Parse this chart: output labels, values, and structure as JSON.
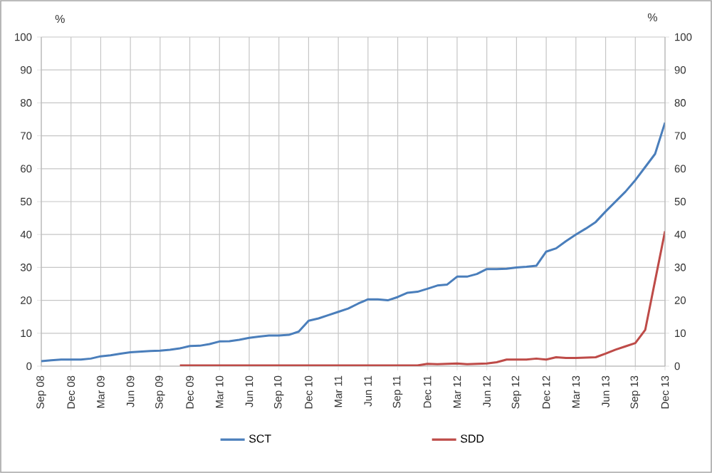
{
  "chart_data": {
    "type": "line",
    "categories": [
      "Sep 08",
      null,
      null,
      "Dec 08",
      null,
      null,
      "Mar 09",
      null,
      null,
      "Jun 09",
      null,
      null,
      "Sep 09",
      null,
      null,
      "Dec 09",
      null,
      null,
      "Mar 10",
      null,
      null,
      "Jun 10",
      null,
      null,
      "Sep 10",
      null,
      null,
      "Dec 10",
      null,
      null,
      "Mar 11",
      null,
      null,
      "Jun 11",
      null,
      null,
      "Sep 11",
      null,
      null,
      "Dec 11",
      null,
      null,
      "Mar 12",
      null,
      null,
      "Jun 12",
      null,
      null,
      "Sep 12",
      null,
      null,
      "Dec 12",
      null,
      null,
      "Mar 13",
      null,
      null,
      "Jun 13",
      null,
      null,
      "Sep 13",
      null,
      null,
      "Dec 13"
    ],
    "series": [
      {
        "name": "SCT",
        "color": "#4a7ebb",
        "values": [
          1.5,
          1.8,
          2,
          2,
          2,
          2.3,
          3,
          3.3,
          3.8,
          4.2,
          4.4,
          4.6,
          4.7,
          5,
          5.4,
          6.1,
          6.2,
          6.7,
          7.5,
          7.6,
          8,
          8.6,
          9,
          9.3,
          9.3,
          9.5,
          10.5,
          13.8,
          14.5,
          15.5,
          16.5,
          17.5,
          19,
          20.3,
          20.3,
          20,
          21,
          22.3,
          22.6,
          23.5,
          24.5,
          24.8,
          27.2,
          27.2,
          28,
          29.5,
          29.5,
          29.6,
          30,
          30.2,
          30.5,
          34.8,
          35.8,
          38,
          40,
          41.8,
          43.8,
          47,
          50,
          53,
          56.5,
          60.5,
          64.5,
          74
        ]
      },
      {
        "name": "SDD",
        "color": "#be4b48",
        "values": [
          null,
          null,
          null,
          null,
          null,
          null,
          null,
          null,
          null,
          null,
          null,
          null,
          null,
          null,
          0.2,
          0.2,
          0.2,
          0.2,
          0.2,
          0.2,
          0.2,
          0.2,
          0.2,
          0.2,
          0.2,
          0.2,
          0.2,
          0.2,
          0.2,
          0.2,
          0.2,
          0.2,
          0.2,
          0.2,
          0.2,
          0.2,
          0.2,
          0.2,
          0.2,
          0.7,
          0.6,
          0.7,
          0.8,
          0.6,
          0.7,
          0.8,
          1.2,
          2,
          2,
          2,
          2.3,
          2,
          2.7,
          2.5,
          2.5,
          2.6,
          2.7,
          3.8,
          5,
          6,
          7,
          11,
          26,
          41
        ]
      }
    ],
    "ylabel": "%",
    "y2label": "%",
    "ylim": [
      0,
      100
    ],
    "yticks": [
      0,
      10,
      20,
      30,
      40,
      50,
      60,
      70,
      80,
      90,
      100
    ],
    "y2lim": [
      0,
      100
    ],
    "y2ticks": [
      0,
      10,
      20,
      30,
      40,
      50,
      60,
      70,
      80,
      90,
      100
    ],
    "grid": true,
    "legend": "bottom",
    "marker": "none",
    "line_style": "solid"
  }
}
